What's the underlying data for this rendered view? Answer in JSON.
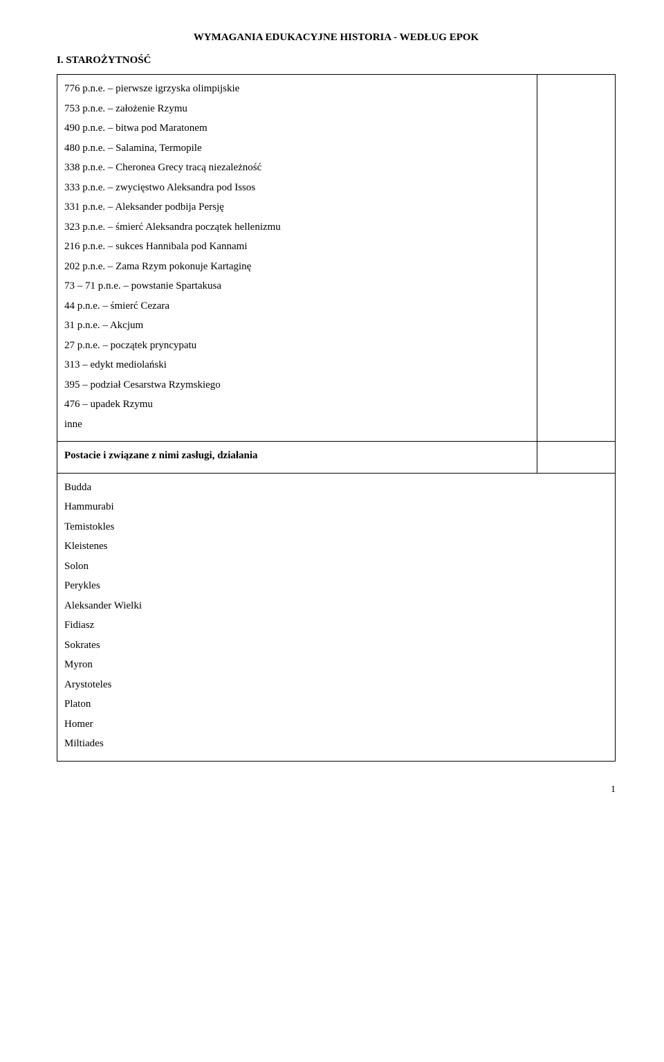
{
  "title": "WYMAGANIA EDUKACYJNE HISTORIA - WEDŁUG EPOK",
  "section": "I. STAROŻYTNOŚĆ",
  "dates": [
    "776 p.n.e. – pierwsze igrzyska olimpijskie",
    "753 p.n.e. – założenie Rzymu",
    "490 p.n.e. – bitwa pod Maratonem",
    "480 p.n.e. – Salamina, Termopile",
    "338 p.n.e. – Cheronea Grecy tracą niezależność",
    "333 p.n.e. – zwycięstwo Aleksandra pod Issos",
    "331 p.n.e. – Aleksander podbija Persję",
    "323 p.n.e. – śmierć Aleksandra początek hellenizmu",
    "216 p.n.e. – sukces Hannibala pod Kannami",
    "202 p.n.e. – Zama Rzym pokonuje Kartaginę",
    "73 – 71 p.n.e. – powstanie Spartakusa",
    "44 p.n.e. – śmierć Cezara",
    "31 p.n.e. – Akcjum",
    "27 p.n.e. – początek pryncypatu",
    "313 – edykt mediolański",
    "395 – podział Cesarstwa Rzymskiego",
    "476 – upadek Rzymu",
    "inne"
  ],
  "figures_heading": "Postacie i związane z nimi zasługi, działania",
  "figures": [
    "Budda",
    "Hammurabi",
    "Temistokles",
    "Kleistenes",
    "Solon",
    "Perykles",
    "Aleksander Wielki",
    "Fidiasz",
    "Sokrates",
    "Myron",
    "Arystoteles",
    "Platon",
    "Homer",
    "Miltiades"
  ],
  "page_number": "1"
}
